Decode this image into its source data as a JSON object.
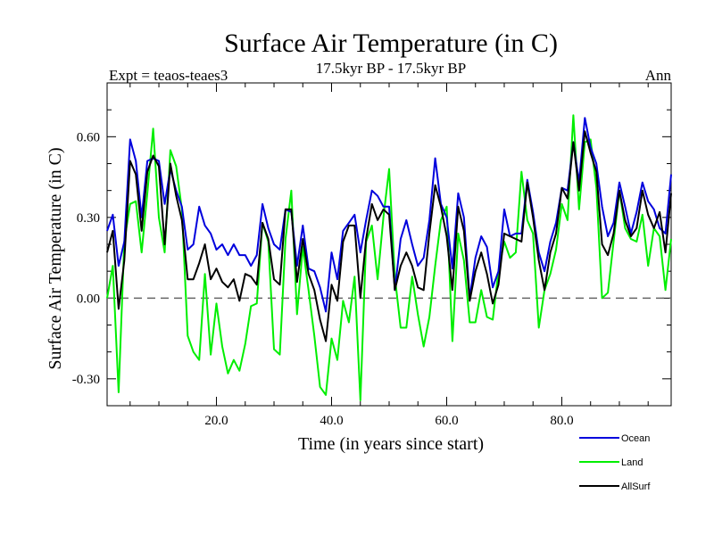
{
  "chart_data": {
    "type": "line",
    "title": "Surface Air Temperature (in C)",
    "subtitle": "17.5kyr BP - 17.5kyr BP",
    "left_label": "Expt = teaos-teaes3",
    "right_label": "Ann",
    "xlabel": "Time (in years since start)",
    "ylabel": "Surface Air Temperature (in C)",
    "xlim": [
      1,
      99
    ],
    "ylim": [
      -0.4,
      0.8
    ],
    "x_ticks": [
      20.0,
      40.0,
      60.0,
      80.0
    ],
    "x_tick_labels": [
      "20.0",
      "40.0",
      "60.0",
      "80.0"
    ],
    "y_ticks": [
      -0.3,
      0.0,
      0.3,
      0.6
    ],
    "y_tick_labels": [
      "-0.30",
      "0.00",
      "0.30",
      "0.60"
    ],
    "zero_line": 0.0,
    "x_start": 1,
    "series": [
      {
        "name": "Ocean",
        "color": "#0000dd",
        "values": [
          0.25,
          0.31,
          0.12,
          0.21,
          0.59,
          0.51,
          0.3,
          0.51,
          0.52,
          0.51,
          0.35,
          0.48,
          0.4,
          0.34,
          0.18,
          0.2,
          0.34,
          0.27,
          0.24,
          0.18,
          0.2,
          0.16,
          0.2,
          0.16,
          0.16,
          0.12,
          0.16,
          0.35,
          0.26,
          0.2,
          0.18,
          0.33,
          0.32,
          0.12,
          0.27,
          0.11,
          0.1,
          0.04,
          -0.05,
          0.17,
          0.07,
          0.25,
          0.28,
          0.31,
          0.17,
          0.29,
          0.4,
          0.38,
          0.34,
          0.34,
          0.03,
          0.22,
          0.29,
          0.2,
          0.12,
          0.15,
          0.29,
          0.52,
          0.35,
          0.3,
          0.11,
          0.39,
          0.3,
          0.0,
          0.15,
          0.23,
          0.19,
          0.04,
          0.1,
          0.33,
          0.23,
          0.24,
          0.24,
          0.44,
          0.32,
          0.17,
          0.1,
          0.21,
          0.28,
          0.41,
          0.4,
          0.58,
          0.43,
          0.67,
          0.56,
          0.5,
          0.34,
          0.23,
          0.28,
          0.43,
          0.34,
          0.24,
          0.32,
          0.43,
          0.36,
          0.33,
          0.26,
          0.24,
          0.46
        ]
      },
      {
        "name": "Land",
        "color": "#00ee00",
        "values": [
          0.0,
          0.12,
          -0.35,
          0.21,
          0.35,
          0.36,
          0.17,
          0.39,
          0.63,
          0.3,
          0.17,
          0.55,
          0.49,
          0.33,
          -0.14,
          -0.2,
          -0.23,
          0.09,
          -0.21,
          -0.02,
          -0.18,
          -0.28,
          -0.23,
          -0.27,
          -0.17,
          -0.03,
          -0.02,
          0.28,
          0.21,
          -0.19,
          -0.21,
          0.22,
          0.4,
          -0.06,
          0.19,
          0.03,
          -0.14,
          -0.33,
          -0.36,
          -0.15,
          -0.23,
          -0.01,
          -0.09,
          0.08,
          -0.38,
          0.21,
          0.27,
          0.07,
          0.3,
          0.48,
          0.08,
          -0.11,
          -0.11,
          0.08,
          -0.06,
          -0.18,
          -0.07,
          0.12,
          0.29,
          0.34,
          -0.16,
          0.24,
          0.14,
          -0.09,
          -0.09,
          0.03,
          -0.07,
          -0.08,
          0.1,
          0.21,
          0.15,
          0.17,
          0.47,
          0.29,
          0.24,
          -0.11,
          0.03,
          0.09,
          0.18,
          0.35,
          0.29,
          0.68,
          0.33,
          0.58,
          0.59,
          0.41,
          0.0,
          0.02,
          0.21,
          0.4,
          0.26,
          0.22,
          0.21,
          0.31,
          0.12,
          0.26,
          0.23,
          0.03,
          0.22
        ]
      },
      {
        "name": "AllSurf",
        "color": "#000000",
        "values": [
          0.17,
          0.25,
          -0.04,
          0.14,
          0.51,
          0.46,
          0.25,
          0.47,
          0.53,
          0.49,
          0.2,
          0.5,
          0.38,
          0.29,
          0.07,
          0.07,
          0.13,
          0.2,
          0.07,
          0.11,
          0.06,
          0.04,
          0.07,
          -0.01,
          0.09,
          0.08,
          0.05,
          0.28,
          0.22,
          0.07,
          0.05,
          0.33,
          0.33,
          0.06,
          0.22,
          0.09,
          0.03,
          -0.08,
          -0.16,
          0.05,
          -0.01,
          0.21,
          0.27,
          0.27,
          0.0,
          0.22,
          0.35,
          0.29,
          0.33,
          0.31,
          0.03,
          0.12,
          0.17,
          0.12,
          0.04,
          0.03,
          0.24,
          0.42,
          0.34,
          0.23,
          0.03,
          0.34,
          0.25,
          -0.01,
          0.1,
          0.17,
          0.09,
          -0.02,
          0.05,
          0.24,
          0.23,
          0.22,
          0.21,
          0.43,
          0.3,
          0.14,
          0.03,
          0.17,
          0.24,
          0.41,
          0.37,
          0.58,
          0.4,
          0.62,
          0.54,
          0.47,
          0.2,
          0.16,
          0.24,
          0.4,
          0.29,
          0.23,
          0.26,
          0.4,
          0.31,
          0.26,
          0.32,
          0.17,
          0.39
        ]
      }
    ],
    "legend": {
      "placement": "bottom-right",
      "entries": [
        "Ocean",
        "Land",
        "AllSurf"
      ]
    }
  }
}
